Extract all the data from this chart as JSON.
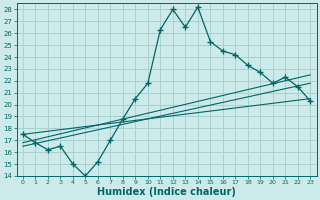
{
  "xlabel": "Humidex (Indice chaleur)",
  "xlim": [
    -0.5,
    23.5
  ],
  "ylim": [
    14,
    28.5
  ],
  "yticks": [
    14,
    15,
    16,
    17,
    18,
    19,
    20,
    21,
    22,
    23,
    24,
    25,
    26,
    27,
    28
  ],
  "xticks": [
    0,
    1,
    2,
    3,
    4,
    5,
    6,
    7,
    8,
    9,
    10,
    11,
    12,
    13,
    14,
    15,
    16,
    17,
    18,
    19,
    20,
    21,
    22,
    23
  ],
  "bg_color": "#cceaea",
  "grid_color": "#aad0d0",
  "line_color": "#006666",
  "line1_x": [
    0,
    1,
    2,
    3,
    4,
    5,
    6,
    7,
    8,
    9,
    10,
    11,
    12,
    13,
    14,
    15,
    16,
    17,
    18,
    19,
    20,
    21,
    22,
    23
  ],
  "line1_y": [
    17.5,
    16.8,
    16.2,
    16.5,
    15.0,
    14.0,
    15.2,
    17.0,
    18.8,
    20.5,
    21.8,
    26.3,
    28.0,
    26.5,
    28.2,
    25.3,
    24.5,
    24.2,
    23.3,
    22.7,
    21.8,
    22.3,
    21.5,
    20.3
  ],
  "line2_x": [
    0,
    23
  ],
  "line2_y": [
    16.5,
    21.8
  ],
  "line3_x": [
    0,
    23
  ],
  "line3_y": [
    17.5,
    20.5
  ],
  "line4_x": [
    0,
    23
  ],
  "line4_y": [
    16.8,
    22.5
  ]
}
